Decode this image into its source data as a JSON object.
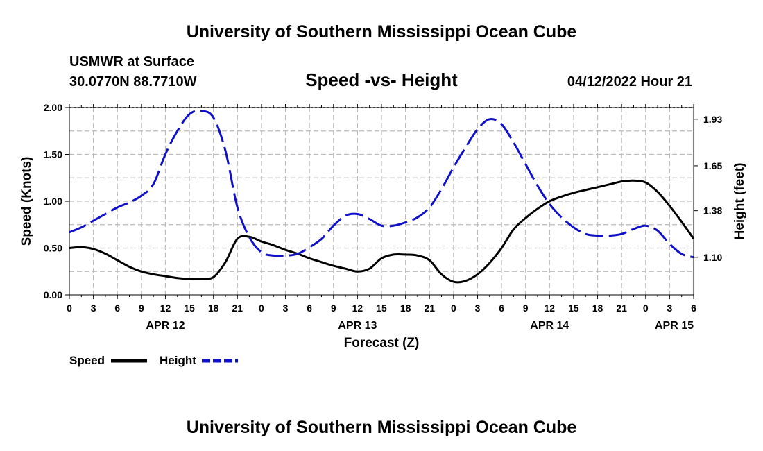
{
  "header": {
    "title": "University of Southern Mississippi Ocean Cube",
    "station": "USMWR at Surface",
    "coords": "30.0770N  88.7710W",
    "subtitle": "Speed -vs- Height",
    "datetime": "04/12/2022 Hour 21"
  },
  "footer": {
    "title": "University of Southern Mississippi Ocean Cube"
  },
  "colors": {
    "speed": "#000000",
    "height": "#1010c8",
    "grid": "#bbbbbb"
  },
  "chart_data": {
    "type": "line",
    "title": "Speed -vs- Height",
    "xlabel": "Forecast (Z)",
    "ylabel": "Speed (Knots)",
    "y2label": "Height (feet)",
    "xlim": [
      0,
      78
    ],
    "ylim": [
      0,
      2.0
    ],
    "y2lim": [
      0.874,
      2.0
    ],
    "grid": true,
    "x_ticks": [
      0,
      3,
      6,
      9,
      12,
      15,
      18,
      21,
      24,
      27,
      30,
      33,
      36,
      39,
      42,
      45,
      48,
      51,
      54,
      57,
      60,
      63,
      66,
      69,
      72,
      75,
      78
    ],
    "x_tick_labels": [
      "0",
      "3",
      "6",
      "9",
      "12",
      "15",
      "18",
      "21",
      "0",
      "3",
      "6",
      "9",
      "12",
      "15",
      "18",
      "21",
      "0",
      "3",
      "6",
      "9",
      "12",
      "15",
      "18",
      "21",
      "0",
      "3",
      "6"
    ],
    "date_labels": [
      {
        "x": 12,
        "label": "APR 12"
      },
      {
        "x": 36,
        "label": "APR 13"
      },
      {
        "x": 60,
        "label": "APR 14"
      },
      {
        "x": 78,
        "label": "APR 15"
      }
    ],
    "y_ticks": [
      0.0,
      0.5,
      1.0,
      1.5,
      2.0
    ],
    "y_tick_labels": [
      "0.00",
      "0.50",
      "1.00",
      "1.50",
      "2.00"
    ],
    "y2_ticks": [
      1.1,
      1.38,
      1.65,
      1.93
    ],
    "y2_tick_labels": [
      "1.10",
      "1.38",
      "1.65",
      "1.93"
    ],
    "legend": {
      "position": "bottom-left",
      "entries": [
        "Speed",
        "Height"
      ]
    },
    "series": [
      {
        "name": "Speed",
        "axis": "left",
        "style": "solid",
        "x": [
          0,
          1.5,
          3,
          4.5,
          6,
          7.5,
          9,
          10.5,
          12,
          13.5,
          15,
          16.5,
          18,
          19.5,
          21,
          22.5,
          24,
          25.5,
          27,
          28.5,
          30,
          31.5,
          33,
          34.5,
          36,
          37.5,
          39,
          40.5,
          42,
          43.5,
          45,
          46.5,
          48,
          49.5,
          51,
          52.5,
          54,
          55.5,
          57,
          58.5,
          60,
          61.5,
          63,
          64.5,
          66,
          67.5,
          69,
          70.5,
          72,
          73.5,
          75,
          76.5,
          78
        ],
        "values": [
          0.5,
          0.51,
          0.49,
          0.44,
          0.37,
          0.3,
          0.25,
          0.22,
          0.2,
          0.18,
          0.17,
          0.17,
          0.19,
          0.35,
          0.6,
          0.62,
          0.57,
          0.53,
          0.48,
          0.44,
          0.39,
          0.35,
          0.31,
          0.28,
          0.25,
          0.28,
          0.39,
          0.43,
          0.43,
          0.42,
          0.37,
          0.22,
          0.14,
          0.15,
          0.22,
          0.34,
          0.5,
          0.7,
          0.82,
          0.92,
          1.0,
          1.05,
          1.09,
          1.12,
          1.15,
          1.18,
          1.21,
          1.22,
          1.2,
          1.1,
          0.95,
          0.78,
          0.6
        ]
      },
      {
        "name": "Height",
        "axis": "right",
        "style": "dashed",
        "x": [
          0,
          1.5,
          3,
          4.5,
          6,
          7.5,
          9,
          10.5,
          12,
          13.5,
          15,
          16.5,
          18,
          19.5,
          21,
          22.5,
          24,
          25.5,
          27,
          28.5,
          30,
          31.5,
          33,
          34.5,
          36,
          37.5,
          39,
          40.5,
          42,
          43.5,
          45,
          46.5,
          48,
          49.5,
          51,
          52.5,
          54,
          55.5,
          57,
          58.5,
          60,
          61.5,
          63,
          64.5,
          66,
          67.5,
          69,
          70.5,
          72,
          73.5,
          75,
          76.5,
          78
        ],
        "values": [
          1.25,
          1.28,
          1.32,
          1.36,
          1.4,
          1.43,
          1.47,
          1.54,
          1.72,
          1.86,
          1.96,
          1.98,
          1.94,
          1.74,
          1.4,
          1.22,
          1.13,
          1.11,
          1.11,
          1.12,
          1.16,
          1.21,
          1.29,
          1.35,
          1.36,
          1.33,
          1.29,
          1.29,
          1.31,
          1.34,
          1.4,
          1.51,
          1.64,
          1.76,
          1.87,
          1.93,
          1.9,
          1.79,
          1.66,
          1.53,
          1.42,
          1.34,
          1.28,
          1.24,
          1.23,
          1.23,
          1.24,
          1.27,
          1.29,
          1.26,
          1.18,
          1.12,
          1.1
        ]
      }
    ]
  }
}
